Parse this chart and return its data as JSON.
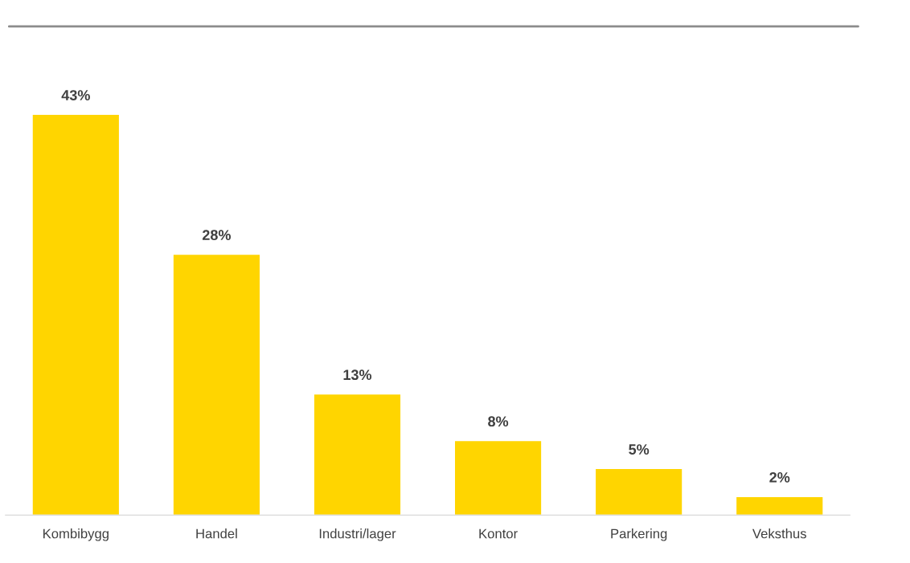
{
  "chart_data": {
    "type": "bar",
    "categories": [
      "Kombibygg",
      "Handel",
      "Industri/lager",
      "Kontor",
      "Parkering",
      "Veksthus"
    ],
    "values": [
      43,
      28,
      13,
      8,
      5,
      2
    ],
    "value_labels": [
      "43%",
      "28%",
      "13%",
      "8%",
      "5%",
      "2%"
    ],
    "color": "#ffd500",
    "grid": false,
    "legend": false
  }
}
